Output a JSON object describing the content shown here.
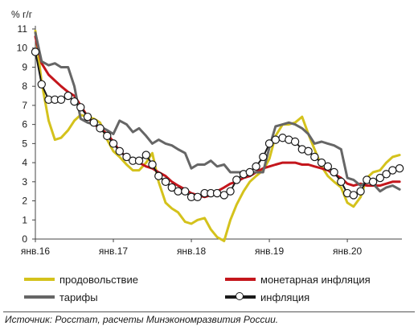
{
  "chart_data": {
    "type": "line",
    "ylabel": "% г/г",
    "ylim": [
      0,
      11
    ],
    "yticks": [
      "0",
      "1",
      "2",
      "3",
      "4",
      "5",
      "6",
      "7",
      "8",
      "9",
      "10",
      "11"
    ],
    "x_tick_labels": [
      {
        "x": 2016.0,
        "label": "янв.16"
      },
      {
        "x": 2017.0,
        "label": "янв.17"
      },
      {
        "x": 2018.0,
        "label": "янв.18"
      },
      {
        "x": 2019.0,
        "label": "янв.19"
      },
      {
        "x": 2020.0,
        "label": "янв.20"
      }
    ],
    "xlim": [
      2016.0,
      2020.7
    ],
    "grid": false,
    "legend_position": "bottom",
    "series": [
      {
        "name": "продовольствие",
        "color": "#d4c21c",
        "marker": false,
        "points": [
          [
            2016.0,
            10.9
          ],
          [
            2016.08,
            8.2
          ],
          [
            2016.17,
            6.2
          ],
          [
            2016.25,
            5.2
          ],
          [
            2016.33,
            5.3
          ],
          [
            2016.42,
            5.7
          ],
          [
            2016.5,
            6.2
          ],
          [
            2016.58,
            6.5
          ],
          [
            2016.67,
            6.4
          ],
          [
            2016.75,
            6.3
          ],
          [
            2016.83,
            6.1
          ],
          [
            2016.92,
            5.2
          ],
          [
            2017.0,
            4.6
          ],
          [
            2017.08,
            4.3
          ],
          [
            2017.17,
            3.9
          ],
          [
            2017.25,
            3.6
          ],
          [
            2017.33,
            3.6
          ],
          [
            2017.42,
            4.0
          ],
          [
            2017.5,
            4.5
          ],
          [
            2017.58,
            3.0
          ],
          [
            2017.67,
            1.9
          ],
          [
            2017.75,
            1.6
          ],
          [
            2017.83,
            1.4
          ],
          [
            2017.92,
            0.9
          ],
          [
            2018.0,
            0.8
          ],
          [
            2018.08,
            1.0
          ],
          [
            2018.17,
            1.1
          ],
          [
            2018.25,
            0.5
          ],
          [
            2018.33,
            0.1
          ],
          [
            2018.42,
            -0.1
          ],
          [
            2018.5,
            1.0
          ],
          [
            2018.58,
            1.8
          ],
          [
            2018.67,
            2.5
          ],
          [
            2018.75,
            3.0
          ],
          [
            2018.83,
            3.3
          ],
          [
            2018.92,
            3.6
          ],
          [
            2019.0,
            4.2
          ],
          [
            2019.08,
            5.4
          ],
          [
            2019.17,
            6.0
          ],
          [
            2019.25,
            6.0
          ],
          [
            2019.33,
            6.1
          ],
          [
            2019.42,
            6.4
          ],
          [
            2019.5,
            5.5
          ],
          [
            2019.58,
            4.7
          ],
          [
            2019.67,
            3.8
          ],
          [
            2019.75,
            3.3
          ],
          [
            2019.83,
            3.0
          ],
          [
            2019.92,
            2.7
          ],
          [
            2020.0,
            1.9
          ],
          [
            2020.08,
            1.7
          ],
          [
            2020.17,
            2.2
          ],
          [
            2020.25,
            3.2
          ],
          [
            2020.33,
            3.5
          ],
          [
            2020.42,
            3.6
          ],
          [
            2020.5,
            4.0
          ],
          [
            2020.58,
            4.3
          ],
          [
            2020.67,
            4.4
          ]
        ]
      },
      {
        "name": "монетарная инфляция",
        "color": "#c4161c",
        "marker": false,
        "points": [
          [
            2016.0,
            10.6
          ],
          [
            2016.08,
            9.2
          ],
          [
            2016.17,
            8.6
          ],
          [
            2016.25,
            8.3
          ],
          [
            2016.33,
            8.0
          ],
          [
            2016.42,
            7.7
          ],
          [
            2016.5,
            7.5
          ],
          [
            2016.58,
            7.0
          ],
          [
            2016.67,
            6.4
          ],
          [
            2016.75,
            6.0
          ],
          [
            2016.83,
            5.8
          ],
          [
            2016.92,
            5.5
          ],
          [
            2017.0,
            5.1
          ],
          [
            2017.08,
            4.6
          ],
          [
            2017.17,
            4.3
          ],
          [
            2017.25,
            4.1
          ],
          [
            2017.33,
            4.0
          ],
          [
            2017.42,
            3.8
          ],
          [
            2017.5,
            3.7
          ],
          [
            2017.58,
            3.5
          ],
          [
            2017.67,
            3.3
          ],
          [
            2017.75,
            3.0
          ],
          [
            2017.83,
            2.8
          ],
          [
            2017.92,
            2.6
          ],
          [
            2018.0,
            2.4
          ],
          [
            2018.08,
            2.3
          ],
          [
            2018.17,
            2.2
          ],
          [
            2018.25,
            2.3
          ],
          [
            2018.33,
            2.5
          ],
          [
            2018.42,
            2.7
          ],
          [
            2018.5,
            2.9
          ],
          [
            2018.58,
            3.0
          ],
          [
            2018.67,
            3.2
          ],
          [
            2018.75,
            3.3
          ],
          [
            2018.83,
            3.5
          ],
          [
            2018.92,
            3.7
          ],
          [
            2019.0,
            3.8
          ],
          [
            2019.08,
            3.9
          ],
          [
            2019.17,
            4.0
          ],
          [
            2019.25,
            4.0
          ],
          [
            2019.33,
            4.0
          ],
          [
            2019.42,
            3.9
          ],
          [
            2019.5,
            3.9
          ],
          [
            2019.58,
            3.8
          ],
          [
            2019.67,
            3.7
          ],
          [
            2019.75,
            3.6
          ],
          [
            2019.83,
            3.4
          ],
          [
            2019.92,
            3.2
          ],
          [
            2020.0,
            2.9
          ],
          [
            2020.08,
            2.8
          ],
          [
            2020.17,
            2.9
          ],
          [
            2020.25,
            2.8
          ],
          [
            2020.33,
            2.8
          ],
          [
            2020.42,
            2.8
          ],
          [
            2020.5,
            2.9
          ],
          [
            2020.58,
            3.0
          ],
          [
            2020.67,
            3.0
          ]
        ]
      },
      {
        "name": "тарифы",
        "color": "#666666",
        "marker": false,
        "points": [
          [
            2016.0,
            10.8
          ],
          [
            2016.08,
            9.3
          ],
          [
            2016.17,
            9.1
          ],
          [
            2016.25,
            9.2
          ],
          [
            2016.33,
            9.0
          ],
          [
            2016.42,
            9.0
          ],
          [
            2016.5,
            8.0
          ],
          [
            2016.58,
            6.3
          ],
          [
            2016.67,
            6.1
          ],
          [
            2016.75,
            6.0
          ],
          [
            2016.83,
            5.9
          ],
          [
            2016.92,
            5.7
          ],
          [
            2017.0,
            5.5
          ],
          [
            2017.08,
            6.2
          ],
          [
            2017.17,
            6.0
          ],
          [
            2017.25,
            5.6
          ],
          [
            2017.33,
            5.8
          ],
          [
            2017.42,
            5.4
          ],
          [
            2017.5,
            5.0
          ],
          [
            2017.58,
            5.2
          ],
          [
            2017.67,
            5.0
          ],
          [
            2017.75,
            4.9
          ],
          [
            2017.83,
            4.7
          ],
          [
            2017.92,
            4.5
          ],
          [
            2018.0,
            3.7
          ],
          [
            2018.08,
            3.9
          ],
          [
            2018.17,
            3.9
          ],
          [
            2018.25,
            4.1
          ],
          [
            2018.33,
            3.8
          ],
          [
            2018.42,
            3.9
          ],
          [
            2018.5,
            3.5
          ],
          [
            2018.58,
            3.5
          ],
          [
            2018.67,
            3.5
          ],
          [
            2018.75,
            3.5
          ],
          [
            2018.83,
            3.5
          ],
          [
            2018.92,
            3.5
          ],
          [
            2019.0,
            4.8
          ],
          [
            2019.08,
            5.9
          ],
          [
            2019.17,
            6.0
          ],
          [
            2019.25,
            6.1
          ],
          [
            2019.33,
            6.0
          ],
          [
            2019.42,
            5.8
          ],
          [
            2019.5,
            5.5
          ],
          [
            2019.58,
            5.0
          ],
          [
            2019.67,
            5.1
          ],
          [
            2019.75,
            5.0
          ],
          [
            2019.83,
            4.9
          ],
          [
            2019.92,
            4.7
          ],
          [
            2020.0,
            3.2
          ],
          [
            2020.08,
            3.1
          ],
          [
            2020.17,
            2.8
          ],
          [
            2020.25,
            3.0
          ],
          [
            2020.33,
            2.9
          ],
          [
            2020.42,
            2.5
          ],
          [
            2020.5,
            2.7
          ],
          [
            2020.58,
            2.8
          ],
          [
            2020.67,
            2.6
          ]
        ]
      },
      {
        "name": "инфляция",
        "color": "#1a1a1a",
        "marker": true,
        "points": [
          [
            2016.0,
            9.8
          ],
          [
            2016.08,
            8.1
          ],
          [
            2016.17,
            7.3
          ],
          [
            2016.25,
            7.3
          ],
          [
            2016.33,
            7.3
          ],
          [
            2016.42,
            7.5
          ],
          [
            2016.5,
            7.2
          ],
          [
            2016.58,
            6.9
          ],
          [
            2016.67,
            6.4
          ],
          [
            2016.75,
            6.1
          ],
          [
            2016.83,
            5.8
          ],
          [
            2016.92,
            5.4
          ],
          [
            2017.0,
            5.0
          ],
          [
            2017.08,
            4.6
          ],
          [
            2017.17,
            4.3
          ],
          [
            2017.25,
            4.1
          ],
          [
            2017.33,
            4.1
          ],
          [
            2017.42,
            4.4
          ],
          [
            2017.5,
            3.9
          ],
          [
            2017.58,
            3.3
          ],
          [
            2017.67,
            3.0
          ],
          [
            2017.75,
            2.7
          ],
          [
            2017.83,
            2.5
          ],
          [
            2017.92,
            2.5
          ],
          [
            2018.0,
            2.2
          ],
          [
            2018.08,
            2.2
          ],
          [
            2018.17,
            2.4
          ],
          [
            2018.25,
            2.4
          ],
          [
            2018.33,
            2.4
          ],
          [
            2018.42,
            2.3
          ],
          [
            2018.5,
            2.5
          ],
          [
            2018.58,
            3.1
          ],
          [
            2018.67,
            3.4
          ],
          [
            2018.75,
            3.5
          ],
          [
            2018.83,
            3.8
          ],
          [
            2018.92,
            4.3
          ],
          [
            2019.0,
            5.0
          ],
          [
            2019.08,
            5.2
          ],
          [
            2019.17,
            5.3
          ],
          [
            2019.25,
            5.2
          ],
          [
            2019.33,
            5.1
          ],
          [
            2019.42,
            4.7
          ],
          [
            2019.5,
            4.6
          ],
          [
            2019.58,
            4.3
          ],
          [
            2019.67,
            4.0
          ],
          [
            2019.75,
            3.8
          ],
          [
            2019.83,
            3.5
          ],
          [
            2019.92,
            3.0
          ],
          [
            2020.0,
            2.4
          ],
          [
            2020.08,
            2.3
          ],
          [
            2020.17,
            2.5
          ],
          [
            2020.25,
            3.1
          ],
          [
            2020.33,
            3.0
          ],
          [
            2020.42,
            3.2
          ],
          [
            2020.5,
            3.4
          ],
          [
            2020.58,
            3.6
          ],
          [
            2020.67,
            3.7
          ]
        ]
      }
    ]
  },
  "legend": {
    "items": [
      {
        "label": "продовольствие",
        "color": "#d4c21c",
        "marker": false
      },
      {
        "label": "монетарная инфляция",
        "color": "#c4161c",
        "marker": false
      },
      {
        "label": "тарифы",
        "color": "#666666",
        "marker": false
      },
      {
        "label": "инфляция",
        "color": "#1a1a1a",
        "marker": true
      }
    ]
  },
  "source_text": "Источник: Росстат, расчеты Минэкономразвития России."
}
